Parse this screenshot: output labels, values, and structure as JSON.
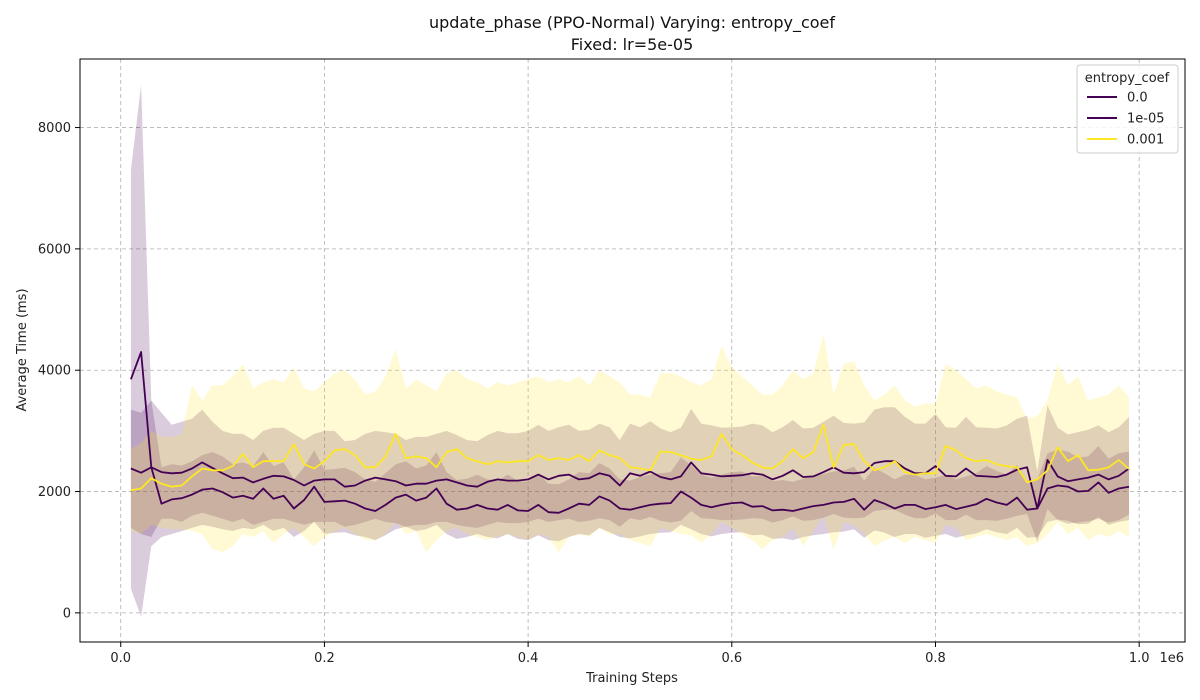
{
  "chart_data": {
    "type": "line",
    "title": "update_phase (PPO-Normal) Varying: entropy_coef",
    "subtitle": "Fixed: lr=5e-05",
    "xlabel": "Training Steps",
    "ylabel": "Average Time (ms)",
    "x_offset_label": "1e6",
    "xlim": [
      -0.04,
      1.045
    ],
    "ylim": [
      -480,
      9130
    ],
    "x_ticks": [
      0.0,
      0.2,
      0.4,
      0.6,
      0.8,
      1.0
    ],
    "x_tick_labels": [
      "0.0",
      "0.2",
      "0.4",
      "0.6",
      "0.8",
      "1.0"
    ],
    "y_ticks": [
      0,
      2000,
      4000,
      6000,
      8000
    ],
    "y_tick_labels": [
      "0",
      "2000",
      "4000",
      "6000",
      "8000"
    ],
    "grid": true,
    "legend_title": "entropy_coef",
    "legend_position": "top-right",
    "x": [
      0.01,
      0.02,
      0.03,
      0.04,
      0.05,
      0.06,
      0.07,
      0.08,
      0.09,
      0.1,
      0.11,
      0.12,
      0.13,
      0.14,
      0.15,
      0.16,
      0.17,
      0.18,
      0.19,
      0.2,
      0.21,
      0.22,
      0.23,
      0.24,
      0.25,
      0.26,
      0.27,
      0.28,
      0.29,
      0.3,
      0.31,
      0.32,
      0.33,
      0.34,
      0.35,
      0.36,
      0.37,
      0.38,
      0.39,
      0.4,
      0.41,
      0.42,
      0.43,
      0.44,
      0.45,
      0.46,
      0.47,
      0.48,
      0.49,
      0.5,
      0.51,
      0.52,
      0.53,
      0.54,
      0.55,
      0.56,
      0.57,
      0.58,
      0.59,
      0.6,
      0.61,
      0.62,
      0.63,
      0.64,
      0.65,
      0.66,
      0.67,
      0.68,
      0.69,
      0.7,
      0.71,
      0.72,
      0.73,
      0.74,
      0.75,
      0.76,
      0.77,
      0.78,
      0.79,
      0.8,
      0.81,
      0.82,
      0.83,
      0.84,
      0.85,
      0.86,
      0.87,
      0.88,
      0.89,
      0.9,
      0.91,
      0.92,
      0.93,
      0.94,
      0.95,
      0.96,
      0.97,
      0.98,
      0.99
    ],
    "series": [
      {
        "name": "0.0",
        "color": "#440154",
        "fill": "#440154",
        "fill_opacity": 0.2,
        "values": [
          3850,
          4300,
          2400,
          1800,
          1870,
          1890,
          1950,
          2030,
          2050,
          1990,
          1900,
          1930,
          1880,
          2050,
          1880,
          1930,
          1720,
          1860,
          2080,
          1830,
          1840,
          1850,
          1800,
          1720,
          1680,
          1780,
          1900,
          1950,
          1850,
          1900,
          2050,
          1800,
          1700,
          1720,
          1780,
          1720,
          1700,
          1780,
          1690,
          1680,
          1780,
          1660,
          1650,
          1720,
          1800,
          1780,
          1920,
          1850,
          1720,
          1700,
          1740,
          1780,
          1800,
          1810,
          2000,
          1900,
          1780,
          1740,
          1780,
          1810,
          1820,
          1750,
          1760,
          1690,
          1700,
          1680,
          1720,
          1760,
          1780,
          1820,
          1830,
          1880,
          1700,
          1860,
          1800,
          1720,
          1780,
          1780,
          1710,
          1740,
          1780,
          1710,
          1750,
          1790,
          1880,
          1820,
          1780,
          1900,
          1700,
          1720,
          2050,
          2100,
          2080,
          2000,
          2010,
          2150,
          1980,
          2050,
          2080
        ]
      },
      {
        "name": "1e-05",
        "color": "#440154",
        "fill": "#440154",
        "fill_opacity": 0.2,
        "values": [
          2380,
          2310,
          2400,
          2320,
          2300,
          2310,
          2380,
          2480,
          2390,
          2300,
          2220,
          2230,
          2150,
          2210,
          2260,
          2250,
          2190,
          2100,
          2180,
          2200,
          2200,
          2080,
          2100,
          2180,
          2230,
          2200,
          2170,
          2100,
          2130,
          2130,
          2180,
          2200,
          2150,
          2100,
          2080,
          2160,
          2200,
          2180,
          2180,
          2200,
          2280,
          2200,
          2260,
          2280,
          2200,
          2220,
          2300,
          2260,
          2100,
          2300,
          2260,
          2330,
          2240,
          2200,
          2250,
          2480,
          2300,
          2280,
          2250,
          2260,
          2270,
          2300,
          2280,
          2200,
          2260,
          2350,
          2240,
          2250,
          2320,
          2400,
          2310,
          2300,
          2320,
          2470,
          2500,
          2500,
          2380,
          2300,
          2300,
          2420,
          2260,
          2250,
          2380,
          2260,
          2250,
          2240,
          2280,
          2360,
          2400,
          1720,
          2520,
          2250,
          2170,
          2200,
          2230,
          2280,
          2200,
          2260,
          2380
        ]
      },
      {
        "name": "0.001",
        "color": "#fde725",
        "fill": "#fde725",
        "fill_opacity": 0.2,
        "values": [
          2020,
          2050,
          2220,
          2130,
          2080,
          2100,
          2250,
          2380,
          2350,
          2350,
          2420,
          2620,
          2400,
          2500,
          2500,
          2500,
          2780,
          2450,
          2380,
          2500,
          2680,
          2700,
          2600,
          2400,
          2400,
          2580,
          2950,
          2550,
          2580,
          2550,
          2400,
          2650,
          2700,
          2550,
          2500,
          2450,
          2500,
          2480,
          2500,
          2500,
          2600,
          2520,
          2550,
          2520,
          2600,
          2500,
          2680,
          2600,
          2550,
          2400,
          2380,
          2350,
          2660,
          2650,
          2600,
          2540,
          2520,
          2580,
          2950,
          2700,
          2600,
          2480,
          2400,
          2380,
          2500,
          2700,
          2550,
          2650,
          3100,
          2400,
          2770,
          2780,
          2500,
          2350,
          2400,
          2500,
          2320,
          2280,
          2300,
          2300,
          2750,
          2680,
          2550,
          2500,
          2520,
          2450,
          2420,
          2400,
          2150,
          2200,
          2350,
          2730,
          2500,
          2600,
          2350,
          2360,
          2400,
          2520,
          2370
        ]
      }
    ],
    "bands": [
      {
        "series": "0.0",
        "lower": [
          400,
          -60,
          1100,
          1250,
          1300,
          1350,
          1400,
          1450,
          1420,
          1380,
          1350,
          1400,
          1380,
          1450,
          1350,
          1400,
          1250,
          1350,
          1500,
          1300,
          1320,
          1330,
          1280,
          1250,
          1200,
          1280,
          1380,
          1420,
          1350,
          1380,
          1450,
          1300,
          1220,
          1250,
          1300,
          1250,
          1230,
          1300,
          1220,
          1200,
          1280,
          1200,
          1180,
          1250,
          1300,
          1280,
          1400,
          1330,
          1250,
          1230,
          1260,
          1300,
          1320,
          1330,
          1450,
          1380,
          1300,
          1260,
          1300,
          1320,
          1330,
          1280,
          1290,
          1220,
          1230,
          1200,
          1250,
          1280,
          1300,
          1330,
          1340,
          1380,
          1240,
          1360,
          1320,
          1250,
          1300,
          1300,
          1240,
          1270,
          1300,
          1240,
          1280,
          1310,
          1380,
          1330,
          1300,
          1400,
          1240,
          1250,
          1500,
          1540,
          1520,
          1460,
          1470,
          1580,
          1450,
          1500,
          1530
        ],
        "upper": [
          7300,
          8700,
          3500,
          2400,
          2450,
          2430,
          2500,
          2600,
          2650,
          2580,
          2450,
          2480,
          2420,
          2650,
          2420,
          2480,
          2200,
          2400,
          2680,
          2360,
          2370,
          2390,
          2320,
          2200,
          2160,
          2300,
          2450,
          2500,
          2380,
          2430,
          2650,
          2320,
          2190,
          2210,
          2280,
          2200,
          2180,
          2280,
          2170,
          2160,
          2300,
          2130,
          2120,
          2200,
          2320,
          2300,
          2470,
          2380,
          2200,
          2180,
          2240,
          2280,
          2300,
          2320,
          2560,
          2440,
          2280,
          2230,
          2280,
          2320,
          2330,
          2250,
          2260,
          2170,
          2190,
          2160,
          2210,
          2260,
          2290,
          2330,
          2350,
          2410,
          2180,
          2390,
          2300,
          2200,
          2280,
          2280,
          2200,
          2230,
          2280,
          2200,
          2250,
          2300,
          2420,
          2340,
          2280,
          2440,
          2180,
          2200,
          2630,
          2690,
          2660,
          2560,
          2580,
          2750,
          2540,
          2630,
          2660
        ]
      },
      {
        "series": "1e-05",
        "lower": [
          1400,
          1300,
          1250,
          1550,
          1550,
          1500,
          1600,
          1650,
          1600,
          1550,
          1500,
          1550,
          1450,
          1500,
          1550,
          1550,
          1500,
          1450,
          1500,
          1500,
          1500,
          1420,
          1450,
          1500,
          1550,
          1500,
          1480,
          1420,
          1450,
          1450,
          1500,
          1500,
          1450,
          1420,
          1400,
          1450,
          1500,
          1480,
          1480,
          1500,
          1550,
          1500,
          1530,
          1550,
          1500,
          1520,
          1560,
          1530,
          1420,
          1560,
          1530,
          1580,
          1520,
          1490,
          1520,
          1680,
          1560,
          1550,
          1530,
          1530,
          1540,
          1560,
          1550,
          1490,
          1530,
          1590,
          1520,
          1530,
          1570,
          1630,
          1570,
          1560,
          1570,
          1680,
          1700,
          1700,
          1620,
          1560,
          1560,
          1640,
          1530,
          1530,
          1620,
          1530,
          1530,
          1520,
          1550,
          1600,
          1630,
          1170,
          1710,
          1530,
          1470,
          1490,
          1510,
          1550,
          1490,
          1530,
          1620
        ],
        "upper": [
          3350,
          3300,
          3500,
          3300,
          3100,
          3150,
          3200,
          3350,
          3150,
          3000,
          2950,
          2950,
          2850,
          3000,
          3050,
          3050,
          2950,
          2850,
          2950,
          3000,
          3000,
          2830,
          2850,
          2950,
          3000,
          2980,
          2950,
          2850,
          2900,
          2900,
          2950,
          3000,
          2930,
          2850,
          2830,
          2930,
          3000,
          2960,
          2960,
          3000,
          3100,
          3000,
          3060,
          3100,
          3000,
          3020,
          3120,
          3060,
          2850,
          3120,
          3060,
          3160,
          3040,
          2980,
          3050,
          3360,
          3120,
          3090,
          3050,
          3060,
          3070,
          3120,
          3090,
          2980,
          3060,
          3180,
          3040,
          3050,
          3150,
          3250,
          3130,
          3120,
          3140,
          3350,
          3390,
          3390,
          3230,
          3120,
          3120,
          3280,
          3060,
          3050,
          3230,
          3060,
          3050,
          3040,
          3090,
          3200,
          3250,
          2330,
          3420,
          3050,
          2940,
          2980,
          3020,
          3090,
          2980,
          3060,
          3230
        ]
      },
      {
        "series": "0.001",
        "lower": [
          1350,
          1300,
          1450,
          1400,
          1380,
          1380,
          1350,
          1300,
          1050,
          1000,
          1100,
          1300,
          1250,
          1350,
          1150,
          1300,
          1400,
          1250,
          1100,
          1250,
          1350,
          1400,
          1300,
          1200,
          1200,
          1300,
          1500,
          1300,
          1350,
          1000,
          1200,
          1350,
          1400,
          1300,
          1250,
          1200,
          1250,
          1300,
          1250,
          1200,
          1300,
          1250,
          1000,
          1250,
          1300,
          1250,
          1400,
          1300,
          1300,
          1200,
          1150,
          1100,
          1400,
          1350,
          1300,
          1280,
          1150,
          1300,
          1500,
          1400,
          1300,
          1200,
          1050,
          1200,
          1250,
          1400,
          1100,
          1350,
          1600,
          1050,
          1500,
          1450,
          1300,
          1100,
          1200,
          1250,
          1150,
          1250,
          1200,
          1150,
          1450,
          1400,
          1200,
          1250,
          1300,
          1250,
          1200,
          1250,
          1100,
          1150,
          1300,
          1500,
          1300,
          1400,
          1200,
          1300,
          1250,
          1350,
          1250
        ],
        "upper": [
          2700,
          2800,
          3000,
          2900,
          2900,
          2950,
          3750,
          3500,
          3750,
          3750,
          3900,
          4100,
          3700,
          3800,
          3850,
          3800,
          4050,
          3700,
          3650,
          3800,
          3950,
          4000,
          3850,
          3600,
          3650,
          3900,
          4350,
          3700,
          3850,
          3750,
          3650,
          3950,
          4000,
          3850,
          3800,
          3700,
          3800,
          3750,
          3800,
          3850,
          3900,
          3800,
          3850,
          3800,
          3900,
          3750,
          4000,
          3900,
          3800,
          3600,
          3600,
          3550,
          3950,
          3950,
          3900,
          3800,
          3750,
          3850,
          4400,
          4050,
          3900,
          3750,
          3600,
          3600,
          3750,
          4000,
          3850,
          3950,
          4600,
          3600,
          4100,
          4150,
          3750,
          3500,
          3600,
          3750,
          3500,
          3400,
          3450,
          3450,
          4100,
          4000,
          3850,
          3700,
          3750,
          3650,
          3600,
          3550,
          3200,
          3250,
          3500,
          4100,
          3750,
          3900,
          3500,
          3550,
          3600,
          3750,
          3550
        ]
      }
    ]
  }
}
